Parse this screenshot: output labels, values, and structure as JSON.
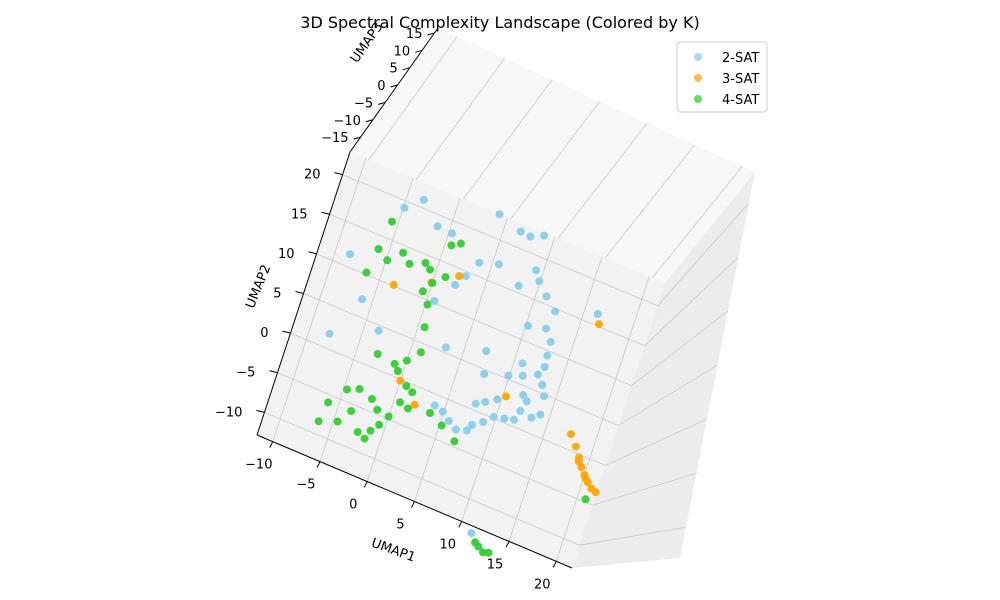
{
  "chart_data": {
    "type": "scatter",
    "projection": "3d",
    "title": "3D Spectral Complexity Landscape (Colored by K)",
    "xlabel": "UMAP1",
    "ylabel": "UMAP2",
    "zlabel": "UMAP3",
    "xlim": [
      -12,
      20
    ],
    "ylim": [
      -13,
      21
    ],
    "zlim": [
      -18,
      15
    ],
    "xticks": [
      "−10",
      "−5",
      "0",
      "5",
      "10",
      "15",
      "20"
    ],
    "yticks": [
      "−10",
      "−5",
      "0",
      "5",
      "10",
      "15",
      "20"
    ],
    "zticks": [
      "−15",
      "−10",
      "−5",
      "0",
      "5",
      "10",
      "15"
    ],
    "grid": true,
    "legend_position": "upper right",
    "series": [
      {
        "name": "2-SAT",
        "color": "#87CEEB",
        "points": [
          [
            -9.0,
            10.2
          ],
          [
            -8.5,
            0.9
          ],
          [
            -6.6,
            6.0
          ],
          [
            -4.2,
            3.4
          ],
          [
            -5.5,
            17.5
          ],
          [
            -4.0,
            19.2
          ],
          [
            -2.0,
            17.0
          ],
          [
            3.2,
            21.0
          ],
          [
            5.6,
            20.1
          ],
          [
            6.6,
            20.0
          ],
          [
            7.8,
            20.7
          ],
          [
            8.1,
            16.7
          ],
          [
            9.8,
            14.4
          ],
          [
            8.7,
            15.7
          ],
          [
            11.0,
            13.2
          ],
          [
            14.9,
            14.8
          ],
          [
            -0.5,
            16.9
          ],
          [
            2.8,
            15.0
          ],
          [
            4.6,
            15.7
          ],
          [
            7.0,
            14.3
          ],
          [
            9.0,
            10.5
          ],
          [
            10.7,
            11.0
          ],
          [
            11.5,
            9.8
          ],
          [
            11.6,
            8.2
          ],
          [
            11.7,
            6.9
          ],
          [
            11.3,
            5.8
          ],
          [
            12.0,
            4.9
          ],
          [
            12.5,
            3.8
          ],
          [
            12.7,
            1.7
          ],
          [
            12.0,
            1.0
          ],
          [
            11.1,
            2.5
          ],
          [
            9.6,
            6.3
          ],
          [
            10.0,
            5.0
          ],
          [
            10.6,
            3.0
          ],
          [
            10.8,
            1.2
          ],
          [
            10.5,
            0.0
          ],
          [
            9.6,
            -0.3
          ],
          [
            8.6,
            -0.6
          ],
          [
            7.8,
            -1.6
          ],
          [
            6.9,
            -2.4
          ],
          [
            6.6,
            -3.2
          ],
          [
            5.6,
            -3.6
          ],
          [
            4.7,
            -3.0
          ],
          [
            3.9,
            -2.3
          ],
          [
            3.0,
            -2.0
          ],
          [
            6.6,
            0.0
          ],
          [
            7.4,
            0.6
          ],
          [
            8.4,
            1.4
          ],
          [
            8.7,
            4.4
          ],
          [
            6.0,
            6.0
          ],
          [
            2.3,
            4.6
          ],
          [
            6.5,
            3.5
          ],
          [
            1.3,
            11.6
          ],
          [
            -0.1,
            9.0
          ],
          [
            2.0,
            13.0
          ],
          [
            10.0,
            -13.8
          ]
        ]
      },
      {
        "name": "3-SAT",
        "color": "#FFA500",
        "points": [
          [
            15.3,
            13.8
          ],
          [
            -4.2,
            8.9
          ],
          [
            -0.9,
            10.8
          ],
          [
            1.4,
            12.7
          ],
          [
            -0.8,
            -0.9
          ],
          [
            1.2,
            -2.8
          ],
          [
            9.1,
            2.1
          ],
          [
            16.0,
            1.0
          ],
          [
            16.8,
            -0.1
          ],
          [
            17.4,
            -1.1
          ],
          [
            17.9,
            -2.0
          ],
          [
            18.4,
            -2.7
          ],
          [
            18.9,
            -3.3
          ],
          [
            19.4,
            -3.8
          ],
          [
            19.9,
            -4.0
          ],
          [
            17.5,
            -1.5
          ],
          [
            18.6,
            -3.0
          ]
        ]
      },
      {
        "name": "4-SAT",
        "color": "#32CD32",
        "points": [
          [
            -6.2,
            15.5
          ],
          [
            -6.6,
            12.0
          ],
          [
            -7.0,
            9.0
          ],
          [
            -5.5,
            11.2
          ],
          [
            -4.3,
            12.7
          ],
          [
            -3.4,
            11.8
          ],
          [
            -1.4,
            12.1
          ],
          [
            -2.0,
            12.6
          ],
          [
            -0.2,
            15.6
          ],
          [
            0.6,
            16.2
          ],
          [
            0.2,
            12.0
          ],
          [
            -0.8,
            10.8
          ],
          [
            -1.4,
            9.5
          ],
          [
            -0.6,
            8.3
          ],
          [
            -0.2,
            5.8
          ],
          [
            0.2,
            3.0
          ],
          [
            -0.8,
            1.5
          ],
          [
            -1.3,
            0.0
          ],
          [
            -0.1,
            -1.2
          ],
          [
            0.6,
            -1.6
          ],
          [
            -0.2,
            -3.2
          ],
          [
            -0.8,
            -5.2
          ],
          [
            -1.4,
            -6.5
          ],
          [
            -2.0,
            -7.5
          ],
          [
            -2.3,
            -8.6
          ],
          [
            -3.1,
            -8.2
          ],
          [
            -4.3,
            -6.3
          ],
          [
            -5.3,
            -4.2
          ],
          [
            -4.2,
            -3.6
          ],
          [
            -2.8,
            -4.1
          ],
          [
            -2.0,
            -5.0
          ],
          [
            -3.6,
            0.9
          ],
          [
            -1.8,
            0.6
          ],
          [
            0.7,
            -3.5
          ],
          [
            2.8,
            -3.0
          ],
          [
            4.2,
            -3.8
          ],
          [
            5.8,
            -4.9
          ],
          [
            19.2,
            -5.2
          ],
          [
            10.6,
            -14.6
          ],
          [
            11.0,
            -14.9
          ],
          [
            11.6,
            -15.3
          ],
          [
            12.1,
            -15.1
          ],
          [
            -6.6,
            -6.4
          ],
          [
            -6.9,
            -8.8
          ],
          [
            -5.2,
            -8.0
          ]
        ]
      }
    ]
  }
}
